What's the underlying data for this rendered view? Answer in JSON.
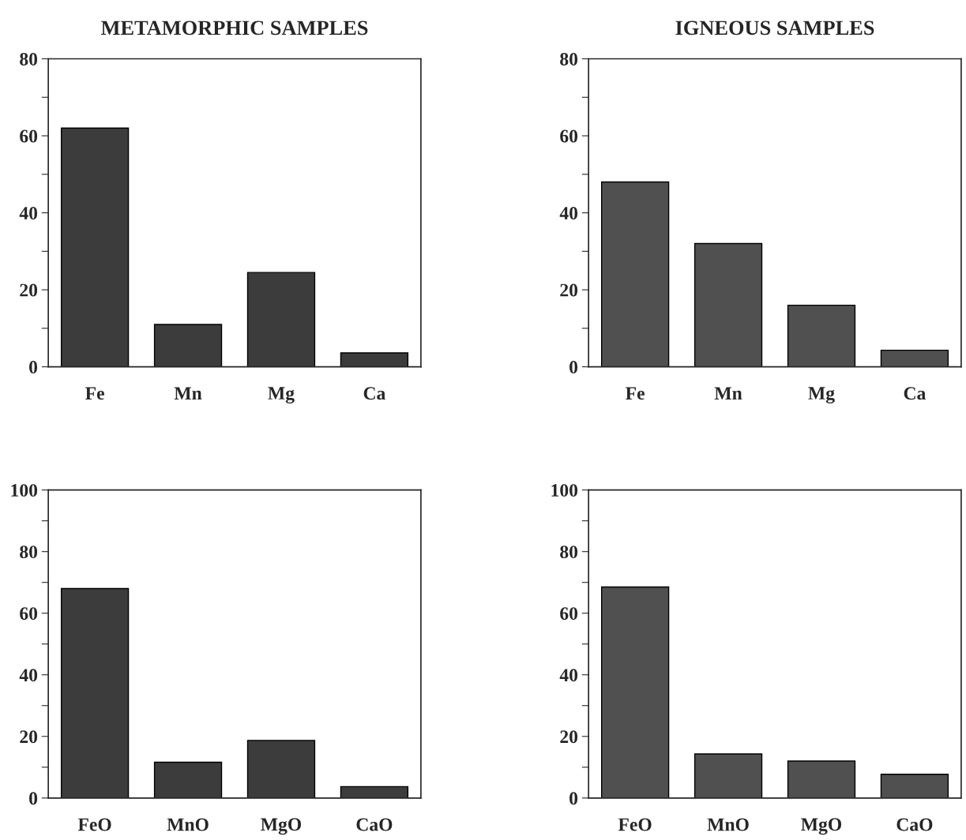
{
  "chart_data": [
    {
      "type": "bar",
      "title": "METAMORPHIC SAMPLES",
      "categories": [
        "Fe",
        "Mn",
        "Mg",
        "Ca"
      ],
      "values": [
        62,
        11,
        24.5,
        3.6
      ],
      "color": "#3c3c3c",
      "ylim": [
        0,
        80
      ],
      "yticks": [
        0,
        {
          "value": 10,
          "label": null
        },
        20,
        {
          "value": 30,
          "label": null
        },
        40,
        {
          "value": 50,
          "label": null
        },
        60,
        {
          "value": 70,
          "label": null
        },
        80
      ],
      "grid": false
    },
    {
      "type": "bar",
      "title": "IGNEOUS SAMPLES",
      "categories": [
        "Fe",
        "Mn",
        "Mg",
        "Ca"
      ],
      "values": [
        48,
        32,
        16,
        4.3
      ],
      "color": "#505050",
      "ylim": [
        0,
        80
      ],
      "yticks": [
        0,
        {
          "value": 10,
          "label": null
        },
        20,
        {
          "value": 30,
          "label": null
        },
        40,
        {
          "value": 50,
          "label": null
        },
        60,
        {
          "value": 70,
          "label": null
        },
        80
      ],
      "grid": false
    },
    {
      "type": "bar",
      "categories": [
        "FeO",
        "MnO",
        "MgO",
        "CaO"
      ],
      "values": [
        68,
        11.6,
        18.7,
        3.7
      ],
      "color": "#3c3c3c",
      "ylim": [
        0,
        100
      ],
      "yticks": [
        0,
        {
          "value": 10,
          "label": null
        },
        20,
        {
          "value": 30,
          "label": null
        },
        40,
        {
          "value": 50,
          "label": null
        },
        60,
        {
          "value": 70,
          "label": null
        },
        80,
        {
          "value": 90,
          "label": null
        },
        100
      ],
      "grid": false
    },
    {
      "type": "bar",
      "categories": [
        "FeO",
        "MnO",
        "MgO",
        "CaO"
      ],
      "values": [
        68.5,
        14.3,
        12,
        7.7
      ],
      "color": "#505050",
      "ylim": [
        0,
        100
      ],
      "yticks": [
        0,
        {
          "value": 10,
          "label": null
        },
        20,
        {
          "value": 30,
          "label": null
        },
        40,
        {
          "value": 50,
          "label": null
        },
        60,
        {
          "value": 70,
          "label": null
        },
        80,
        {
          "value": 90,
          "label": null
        },
        100
      ],
      "grid": false
    }
  ]
}
